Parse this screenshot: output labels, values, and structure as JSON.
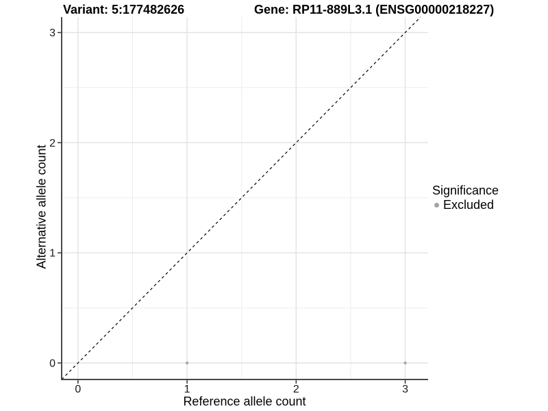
{
  "chart_data": {
    "type": "scatter",
    "titles": {
      "left": "Variant: 5:177482626",
      "right": "Gene: RP11-889L3.1 (ENSG00000218227)"
    },
    "xlabel": "Reference allele count",
    "ylabel": "Alternative allele count",
    "xlim": [
      -0.15,
      3.21
    ],
    "ylim": [
      -0.15,
      3.14
    ],
    "x_ticks": [
      0,
      1,
      2,
      3
    ],
    "y_ticks": [
      0,
      1,
      2,
      3
    ],
    "x_minor_gridlines": [
      0.5,
      1.5,
      2.5
    ],
    "y_minor_gridlines": [
      0.5,
      1.5,
      2.5
    ],
    "grid": "major+minor",
    "legend": {
      "title": "Significance",
      "position": "right",
      "items": [
        {
          "label": "Excluded",
          "color": "#a5a5a5"
        }
      ]
    },
    "series": [
      {
        "name": "Excluded",
        "color": "#a5a5a5",
        "points": [
          {
            "x": 1,
            "y": 0
          },
          {
            "x": 3,
            "y": 0
          }
        ]
      }
    ],
    "reference_line": {
      "type": "identity",
      "equation": "y = x",
      "style": "dashed",
      "color": "#000000"
    }
  },
  "colors": {
    "background": "#ffffff",
    "grid_major": "#e2e2e2",
    "grid_minor": "#ededed",
    "axis_line": "#484848",
    "tick_mark": "#333333",
    "tick_label": "#1a1a1a",
    "point": "#a5a5a5"
  }
}
